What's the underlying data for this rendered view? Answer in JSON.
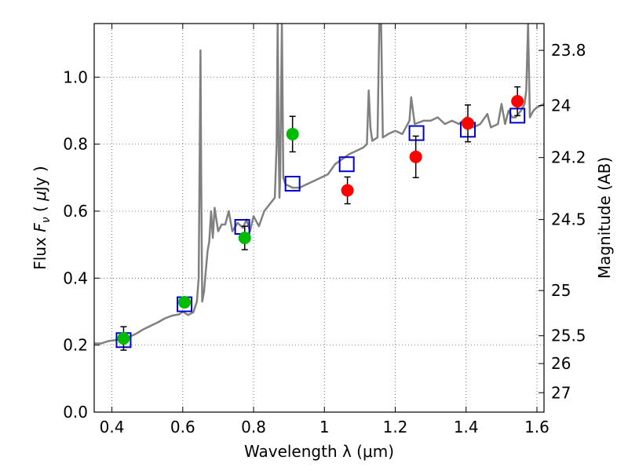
{
  "chart_data": {
    "type": "line",
    "xlabel": "Wavelength  λ (μm)",
    "ylabel_parts": {
      "prefix": "Flux  ",
      "var": "F",
      "sub": "ν",
      "mid": "  ( ",
      "unit_greek": "μ",
      "unit": "Jy )"
    },
    "y2label": "Magnitude (AB)",
    "xlim": [
      0.35,
      1.62
    ],
    "ylim": [
      0.0,
      1.16
    ],
    "xticks": [
      0.4,
      0.6,
      0.8,
      1.0,
      1.2,
      1.4,
      1.6
    ],
    "xtick_labels": [
      "0.4",
      "0.6",
      "0.8",
      "1",
      "1.2",
      "1.4",
      "1.6"
    ],
    "yticks": [
      0.0,
      0.2,
      0.4,
      0.6,
      0.8,
      1.0
    ],
    "ytick_labels": [
      "0.0",
      "0.2",
      "0.4",
      "0.6",
      "0.8",
      "1.0"
    ],
    "y2ticks": [
      {
        "label": "23.8",
        "flux": 1.08
      },
      {
        "label": "24",
        "flux": 0.915
      },
      {
        "label": "24.2",
        "flux": 0.76
      },
      {
        "label": "24.5",
        "flux": 0.575
      },
      {
        "label": "25",
        "flux": 0.363
      },
      {
        "label": "25.5",
        "flux": 0.228
      },
      {
        "label": "26",
        "flux": 0.145
      },
      {
        "label": "27",
        "flux": 0.058
      }
    ],
    "grid": true,
    "colors": {
      "spectrum": "#808080",
      "model": "#0000cc",
      "green": "#00bb00",
      "red": "#ff0000",
      "errorbar": "#000000"
    },
    "series": [
      {
        "kind": "spectrum",
        "points": [
          [
            0.35,
            0.205
          ],
          [
            0.37,
            0.205
          ],
          [
            0.39,
            0.212
          ],
          [
            0.41,
            0.215
          ],
          [
            0.43,
            0.218
          ],
          [
            0.45,
            0.225
          ],
          [
            0.47,
            0.235
          ],
          [
            0.49,
            0.248
          ],
          [
            0.51,
            0.258
          ],
          [
            0.53,
            0.268
          ],
          [
            0.55,
            0.28
          ],
          [
            0.57,
            0.288
          ],
          [
            0.59,
            0.292
          ],
          [
            0.6,
            0.3
          ],
          [
            0.615,
            0.29
          ],
          [
            0.63,
            0.298
          ],
          [
            0.64,
            0.33
          ],
          [
            0.645,
            0.4
          ],
          [
            0.648,
            0.8
          ],
          [
            0.65,
            1.08
          ],
          [
            0.652,
            0.7
          ],
          [
            0.655,
            0.33
          ],
          [
            0.66,
            0.36
          ],
          [
            0.665,
            0.42
          ],
          [
            0.67,
            0.48
          ],
          [
            0.675,
            0.51
          ],
          [
            0.68,
            0.6
          ],
          [
            0.685,
            0.52
          ],
          [
            0.69,
            0.61
          ],
          [
            0.7,
            0.54
          ],
          [
            0.71,
            0.56
          ],
          [
            0.72,
            0.56
          ],
          [
            0.73,
            0.6
          ],
          [
            0.74,
            0.54
          ],
          [
            0.755,
            0.565
          ],
          [
            0.77,
            0.55
          ],
          [
            0.78,
            0.575
          ],
          [
            0.79,
            0.54
          ],
          [
            0.8,
            0.585
          ],
          [
            0.815,
            0.555
          ],
          [
            0.83,
            0.6
          ],
          [
            0.845,
            0.62
          ],
          [
            0.86,
            0.64
          ],
          [
            0.865,
            0.8
          ],
          [
            0.868,
            1.16
          ],
          [
            0.871,
            0.78
          ],
          [
            0.873,
            0.64
          ],
          [
            0.875,
            0.7
          ],
          [
            0.88,
            1.16
          ],
          [
            0.884,
            0.7
          ],
          [
            0.89,
            0.68
          ],
          [
            0.91,
            0.67
          ],
          [
            0.93,
            0.67
          ],
          [
            0.95,
            0.68
          ],
          [
            0.97,
            0.69
          ],
          [
            0.99,
            0.7
          ],
          [
            1.01,
            0.71
          ],
          [
            1.03,
            0.74
          ],
          [
            1.05,
            0.755
          ],
          [
            1.07,
            0.77
          ],
          [
            1.09,
            0.78
          ],
          [
            1.11,
            0.79
          ],
          [
            1.12,
            0.8
          ],
          [
            1.125,
            0.96
          ],
          [
            1.13,
            0.85
          ],
          [
            1.135,
            0.81
          ],
          [
            1.15,
            0.82
          ],
          [
            1.155,
            1.16
          ],
          [
            1.16,
            1.16
          ],
          [
            1.165,
            0.82
          ],
          [
            1.18,
            0.83
          ],
          [
            1.2,
            0.84
          ],
          [
            1.22,
            0.83
          ],
          [
            1.24,
            0.87
          ],
          [
            1.245,
            0.94
          ],
          [
            1.255,
            0.86
          ],
          [
            1.28,
            0.87
          ],
          [
            1.3,
            0.87
          ],
          [
            1.32,
            0.88
          ],
          [
            1.34,
            0.86
          ],
          [
            1.36,
            0.87
          ],
          [
            1.38,
            0.86
          ],
          [
            1.4,
            0.88
          ],
          [
            1.42,
            0.85
          ],
          [
            1.44,
            0.86
          ],
          [
            1.46,
            0.89
          ],
          [
            1.47,
            0.85
          ],
          [
            1.49,
            0.86
          ],
          [
            1.5,
            0.92
          ],
          [
            1.51,
            0.86
          ],
          [
            1.52,
            0.9
          ],
          [
            1.53,
            0.88
          ],
          [
            1.54,
            0.88
          ],
          [
            1.555,
            0.9
          ],
          [
            1.565,
            0.92
          ],
          [
            1.57,
            0.96
          ],
          [
            1.575,
            1.16
          ],
          [
            1.58,
            0.88
          ],
          [
            1.59,
            0.9
          ],
          [
            1.6,
            0.91
          ],
          [
            1.62,
            0.92
          ]
        ]
      },
      {
        "kind": "model_squares",
        "points": [
          [
            0.433,
            0.215
          ],
          [
            0.605,
            0.322
          ],
          [
            0.768,
            0.553
          ],
          [
            0.91,
            0.682
          ],
          [
            1.063,
            0.74
          ],
          [
            1.26,
            0.833
          ],
          [
            1.405,
            0.843
          ],
          [
            1.545,
            0.885
          ]
        ]
      },
      {
        "kind": "green_points",
        "points": [
          {
            "x": 0.433,
            "y": 0.22,
            "err": 0.035
          },
          {
            "x": 0.605,
            "y": 0.328,
            "err": 0.012
          },
          {
            "x": 0.775,
            "y": 0.52,
            "err": 0.035
          },
          {
            "x": 0.91,
            "y": 0.83,
            "err": 0.053
          }
        ]
      },
      {
        "kind": "red_points",
        "points": [
          {
            "x": 1.065,
            "y": 0.662,
            "err": 0.04
          },
          {
            "x": 1.258,
            "y": 0.762,
            "err": 0.062
          },
          {
            "x": 1.405,
            "y": 0.862,
            "err": 0.055
          },
          {
            "x": 1.545,
            "y": 0.928,
            "err": 0.043
          }
        ]
      }
    ]
  }
}
